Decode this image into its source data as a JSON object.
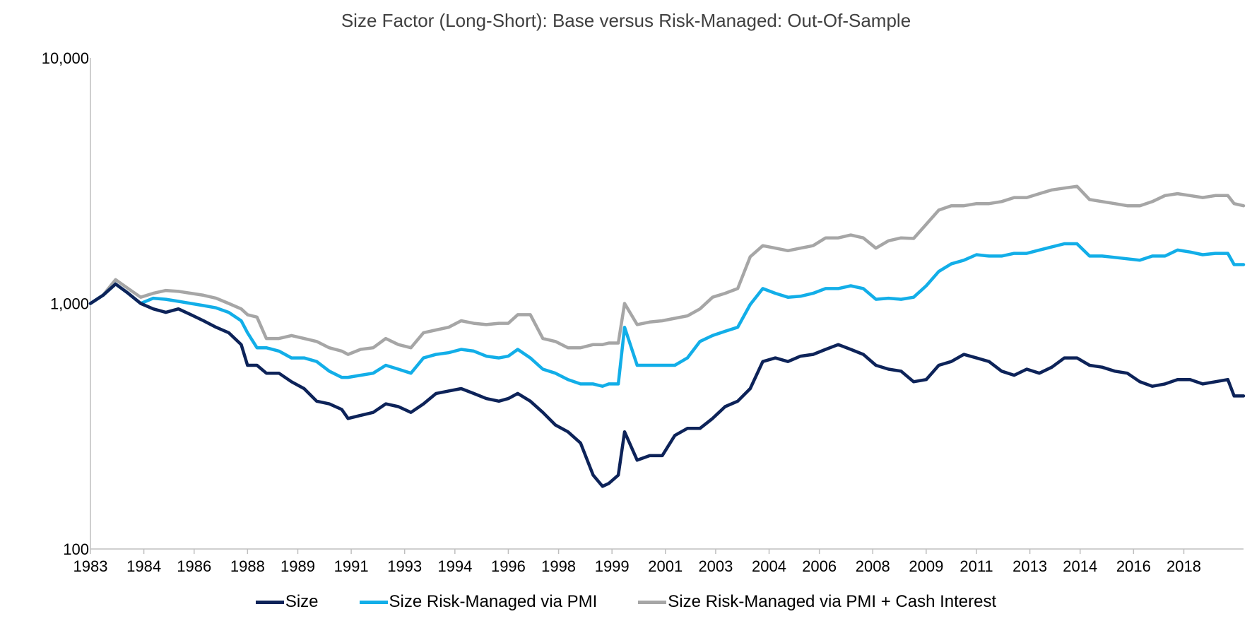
{
  "chart_data": {
    "type": "line",
    "title": "Size Factor (Long-Short): Base versus Risk-Managed: Out-Of-Sample",
    "xlabel": "",
    "ylabel": "",
    "y_scale": "log",
    "ylim": [
      100,
      10000
    ],
    "y_ticks": [
      100,
      1000,
      10000
    ],
    "y_tick_labels": [
      "100",
      "1,000",
      "10,000"
    ],
    "xlim": [
      1983.0,
      2019.7
    ],
    "x_tick_labels": [
      "1983",
      "1984",
      "1986",
      "1988",
      "1989",
      "1991",
      "1993",
      "1994",
      "1996",
      "1998",
      "1999",
      "2001",
      "2003",
      "2004",
      "2006",
      "2008",
      "2009",
      "2011",
      "2013",
      "2014",
      "2016",
      "2018"
    ],
    "x_tick_values": [
      1983.0,
      1984.7,
      1986.3,
      1988.0,
      1989.6,
      1991.3,
      1993.0,
      1994.6,
      1996.3,
      1997.9,
      1999.6,
      2001.3,
      2002.9,
      2004.6,
      2006.2,
      2007.9,
      2009.6,
      2011.2,
      2012.9,
      2014.5,
      2016.2,
      2017.8
    ],
    "grid": false,
    "legend_position": "bottom",
    "series": [
      {
        "name": "Size",
        "color": "#0d2359",
        "x": [
          1983.0,
          1983.4,
          1983.8,
          1984.2,
          1984.6,
          1985.0,
          1985.4,
          1985.8,
          1986.2,
          1986.6,
          1987.0,
          1987.4,
          1987.8,
          1988.0,
          1988.3,
          1988.6,
          1989.0,
          1989.4,
          1989.8,
          1990.2,
          1990.6,
          1991.0,
          1991.2,
          1991.6,
          1992.0,
          1992.4,
          1992.8,
          1993.2,
          1993.6,
          1994.0,
          1994.4,
          1994.8,
          1995.2,
          1995.6,
          1996.0,
          1996.3,
          1996.6,
          1997.0,
          1997.4,
          1997.8,
          1998.2,
          1998.6,
          1999.0,
          1999.3,
          1999.5,
          1999.8,
          2000.0,
          2000.4,
          2000.8,
          2001.2,
          2001.6,
          2002.0,
          2002.4,
          2002.8,
          2003.2,
          2003.6,
          2004.0,
          2004.4,
          2004.8,
          2005.2,
          2005.6,
          2006.0,
          2006.4,
          2006.8,
          2007.2,
          2007.6,
          2008.0,
          2008.4,
          2008.8,
          2009.2,
          2009.6,
          2010.0,
          2010.4,
          2010.8,
          2011.2,
          2011.6,
          2012.0,
          2012.4,
          2012.8,
          2013.2,
          2013.6,
          2014.0,
          2014.4,
          2014.8,
          2015.2,
          2015.6,
          2016.0,
          2016.4,
          2016.8,
          2017.2,
          2017.6,
          2018.0,
          2018.4,
          2018.8,
          2019.2,
          2019.4,
          2019.7
        ],
        "values": [
          1000,
          1080,
          1200,
          1100,
          1000,
          950,
          920,
          950,
          900,
          850,
          800,
          760,
          680,
          560,
          560,
          520,
          520,
          480,
          450,
          400,
          390,
          370,
          340,
          350,
          360,
          390,
          380,
          360,
          390,
          430,
          440,
          450,
          430,
          410,
          400,
          410,
          430,
          400,
          360,
          320,
          300,
          270,
          200,
          180,
          185,
          200,
          300,
          230,
          240,
          240,
          290,
          310,
          310,
          340,
          380,
          400,
          450,
          580,
          600,
          580,
          610,
          620,
          650,
          680,
          650,
          620,
          560,
          540,
          530,
          480,
          490,
          560,
          580,
          620,
          600,
          580,
          530,
          510,
          540,
          520,
          550,
          600,
          600,
          560,
          550,
          530,
          520,
          480,
          460,
          470,
          490,
          490,
          470,
          480,
          490,
          420,
          420
        ]
      },
      {
        "name": "Size Risk-Managed via PMI",
        "color": "#12aee8",
        "x": [
          1983.0,
          1983.4,
          1983.8,
          1984.2,
          1984.6,
          1985.0,
          1985.4,
          1985.8,
          1986.2,
          1986.6,
          1987.0,
          1987.4,
          1987.8,
          1988.0,
          1988.3,
          1988.6,
          1989.0,
          1989.4,
          1989.8,
          1990.2,
          1990.6,
          1991.0,
          1991.2,
          1991.6,
          1992.0,
          1992.4,
          1992.8,
          1993.2,
          1993.6,
          1994.0,
          1994.4,
          1994.8,
          1995.2,
          1995.6,
          1996.0,
          1996.3,
          1996.6,
          1997.0,
          1997.4,
          1997.8,
          1998.2,
          1998.6,
          1999.0,
          1999.3,
          1999.5,
          1999.8,
          2000.0,
          2000.4,
          2000.8,
          2001.2,
          2001.6,
          2002.0,
          2002.4,
          2002.8,
          2003.2,
          2003.6,
          2004.0,
          2004.4,
          2004.8,
          2005.2,
          2005.6,
          2006.0,
          2006.4,
          2006.8,
          2007.2,
          2007.6,
          2008.0,
          2008.4,
          2008.8,
          2009.2,
          2009.6,
          2010.0,
          2010.4,
          2010.8,
          2011.2,
          2011.6,
          2012.0,
          2012.4,
          2012.8,
          2013.2,
          2013.6,
          2014.0,
          2014.4,
          2014.8,
          2015.2,
          2015.6,
          2016.0,
          2016.4,
          2016.8,
          2017.2,
          2017.6,
          2018.0,
          2018.4,
          2018.8,
          2019.2,
          2019.4,
          2019.7
        ],
        "values": [
          1000,
          1080,
          1200,
          1100,
          1000,
          1050,
          1040,
          1020,
          1000,
          980,
          960,
          920,
          850,
          760,
          660,
          660,
          640,
          600,
          600,
          580,
          530,
          500,
          500,
          510,
          520,
          560,
          540,
          520,
          600,
          620,
          630,
          650,
          640,
          610,
          600,
          610,
          650,
          600,
          540,
          520,
          490,
          470,
          470,
          460,
          470,
          470,
          800,
          560,
          560,
          560,
          560,
          600,
          700,
          740,
          770,
          800,
          990,
          1150,
          1100,
          1060,
          1070,
          1100,
          1150,
          1150,
          1180,
          1150,
          1040,
          1050,
          1040,
          1060,
          1180,
          1350,
          1450,
          1500,
          1580,
          1560,
          1560,
          1600,
          1600,
          1650,
          1700,
          1750,
          1750,
          1560,
          1560,
          1540,
          1520,
          1500,
          1560,
          1560,
          1650,
          1620,
          1580,
          1600,
          1600,
          1440,
          1440
        ]
      },
      {
        "name": "Size Risk-Managed via PMI + Cash Interest",
        "color": "#a6a6a6",
        "x": [
          1983.0,
          1983.4,
          1983.8,
          1984.2,
          1984.6,
          1985.0,
          1985.4,
          1985.8,
          1986.2,
          1986.6,
          1987.0,
          1987.4,
          1987.8,
          1988.0,
          1988.3,
          1988.6,
          1989.0,
          1989.4,
          1989.8,
          1990.2,
          1990.6,
          1991.0,
          1991.2,
          1991.6,
          1992.0,
          1992.4,
          1992.8,
          1993.2,
          1993.6,
          1994.0,
          1994.4,
          1994.8,
          1995.2,
          1995.6,
          1996.0,
          1996.3,
          1996.6,
          1997.0,
          1997.4,
          1997.8,
          1998.2,
          1998.6,
          1999.0,
          1999.3,
          1999.5,
          1999.8,
          2000.0,
          2000.4,
          2000.8,
          2001.2,
          2001.6,
          2002.0,
          2002.4,
          2002.8,
          2003.2,
          2003.6,
          2004.0,
          2004.4,
          2004.8,
          2005.2,
          2005.6,
          2006.0,
          2006.4,
          2006.8,
          2007.2,
          2007.6,
          2008.0,
          2008.4,
          2008.8,
          2009.2,
          2009.6,
          2010.0,
          2010.4,
          2010.8,
          2011.2,
          2011.6,
          2012.0,
          2012.4,
          2012.8,
          2013.2,
          2013.6,
          2014.0,
          2014.4,
          2014.8,
          2015.2,
          2015.6,
          2016.0,
          2016.4,
          2016.8,
          2017.2,
          2017.6,
          2018.0,
          2018.4,
          2018.8,
          2019.2,
          2019.4,
          2019.7
        ],
        "values": [
          1000,
          1080,
          1250,
          1150,
          1060,
          1100,
          1130,
          1120,
          1100,
          1080,
          1050,
          1000,
          950,
          900,
          880,
          720,
          720,
          740,
          720,
          700,
          660,
          640,
          620,
          650,
          660,
          720,
          680,
          660,
          760,
          780,
          800,
          850,
          830,
          820,
          830,
          830,
          900,
          900,
          720,
          700,
          660,
          660,
          680,
          680,
          690,
          690,
          1000,
          820,
          840,
          850,
          870,
          890,
          950,
          1060,
          1100,
          1150,
          1550,
          1720,
          1680,
          1640,
          1680,
          1720,
          1850,
          1850,
          1900,
          1850,
          1680,
          1800,
          1850,
          1840,
          2100,
          2400,
          2500,
          2500,
          2550,
          2550,
          2600,
          2700,
          2700,
          2800,
          2900,
          2950,
          3000,
          2650,
          2600,
          2550,
          2500,
          2500,
          2600,
          2750,
          2800,
          2750,
          2700,
          2750,
          2750,
          2550,
          2500
        ]
      }
    ]
  }
}
